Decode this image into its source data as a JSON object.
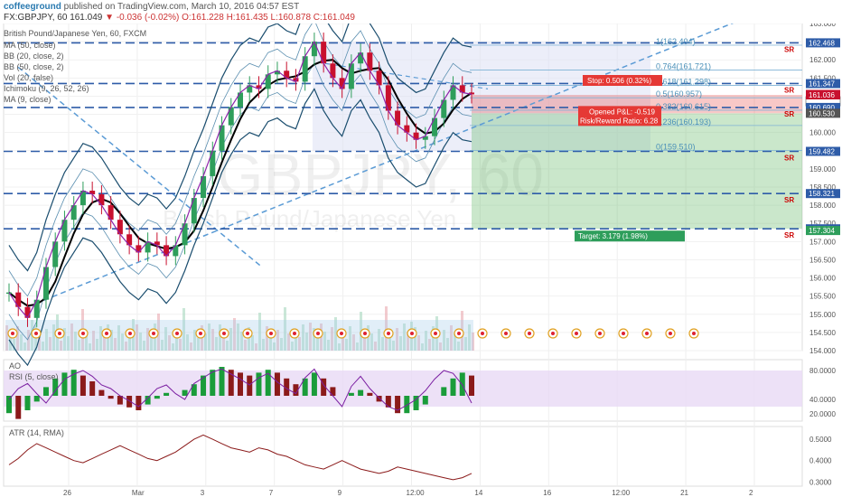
{
  "header": {
    "author": "coffeeground",
    "published": "published on TradingView.com, March 10, 2016 04:57 EST",
    "symbol": "FX:GBPJPY, 60",
    "last": "161.049",
    "change": "-0.036 (-0.02%)",
    "open": "O:161.228",
    "high": "H:161.435",
    "low": "L:160.878",
    "close": "C:161.049"
  },
  "legend": {
    "title": "British Pound/Japanese Yen, 60, FXCM",
    "items": [
      "MA (50, close)",
      "BB (20, close, 2)",
      "BB (50, close, 2)",
      "Vol (20, false)",
      "Ichimoku (9, 26, 52, 26)",
      "MA (9, close)"
    ]
  },
  "watermark": {
    "symbol": "GBPJPY, 60",
    "name": "British Pound/Japanese Yen"
  },
  "colors": {
    "up": "#2e9e5b",
    "down": "#c8102e",
    "sr_line": "#2e5ca8",
    "trend": "#5b9bd5",
    "target": "#66bb6a",
    "stop": "#e53935",
    "rsi_band": "#e8d9f5"
  },
  "chart_data": [
    {
      "type": "candlestick",
      "title": "British Pound/Japanese Yen, 60, FXCM",
      "ylim": [
        154.0,
        163.0
      ],
      "x_ticks": [
        "26",
        "Mar",
        "3",
        "7",
        "9",
        "12:00",
        "14",
        "16",
        "12:00",
        "21",
        "2"
      ],
      "y_ticks": [
        "163.000",
        "162.500",
        "162.000",
        "161.500",
        "161.000",
        "160.500",
        "160.000",
        "159.500",
        "159.000",
        "158.500",
        "158.000",
        "157.500",
        "157.000",
        "156.500",
        "156.000",
        "155.500",
        "155.000",
        "154.500",
        "154.000"
      ],
      "close_series": [
        155.6,
        155.2,
        154.9,
        155.4,
        156.3,
        157.0,
        157.6,
        158.0,
        158.4,
        158.3,
        158.0,
        157.6,
        157.2,
        156.9,
        156.7,
        157.0,
        156.9,
        156.6,
        156.9,
        157.5,
        158.2,
        158.8,
        159.5,
        160.2,
        160.7,
        161.1,
        161.3,
        161.2,
        161.6,
        161.7,
        161.5,
        161.4,
        162.1,
        162.5,
        161.9,
        161.5,
        161.2,
        161.9,
        162.2,
        161.7,
        161.3,
        160.6,
        160.2,
        160.0,
        159.8,
        159.9,
        160.4,
        160.9,
        161.3,
        161.1,
        161.05
      ],
      "sr_levels": [
        {
          "value": 162.468,
          "label": "SR"
        },
        {
          "value": 161.347,
          "label": "SR"
        },
        {
          "value": 160.69,
          "label": "SR"
        },
        {
          "value": 159.482,
          "label": "SR"
        },
        {
          "value": 158.321,
          "label": "SR"
        },
        {
          "value": 157.351,
          "label": "SR"
        }
      ],
      "price_labels": [
        {
          "value": 162.468,
          "text": "162.468"
        },
        {
          "value": 161.347,
          "text": "161.347"
        },
        {
          "value": 161.049,
          "text": "161.049"
        },
        {
          "value": 160.86,
          "text": "03:55"
        },
        {
          "value": 161.036,
          "text": "161.036"
        },
        {
          "value": 160.69,
          "text": "160.690"
        },
        {
          "value": 160.53,
          "text": "160.530"
        },
        {
          "value": 159.482,
          "text": "159.482"
        },
        {
          "value": 158.321,
          "text": "158.321"
        },
        {
          "value": 157.351,
          "text": "157.351"
        },
        {
          "value": 157.304,
          "text": "157.304"
        }
      ],
      "fib_levels": [
        {
          "value": 162.404,
          "text": "1(162.404)"
        },
        {
          "value": 161.721,
          "text": "0.764(161.721)"
        },
        {
          "value": 161.298,
          "text": "0.618(161.298)"
        },
        {
          "value": 160.957,
          "text": "0.5(160.957)"
        },
        {
          "value": 160.615,
          "text": "0.382(160.615)"
        },
        {
          "value": 160.193,
          "text": "0.236(160.193)"
        },
        {
          "value": 159.51,
          "text": "0(159.510)"
        }
      ],
      "trade": {
        "stop_label": "Stop: 0.506 (0.32%)",
        "pnl_label": "Opened P&L: -0.519",
        "rr_label": "Risk/Reward Ratio: 6.28",
        "target_label": "Target: 3.179 (1.98%)",
        "entry": 160.53,
        "stop": 161.036,
        "target": 157.351
      }
    },
    {
      "type": "line",
      "title": "RSI (5, close)",
      "label_ao": "AO",
      "ylim": [
        10,
        95
      ],
      "y_ticks": [
        "80.0000",
        "40.0000",
        "20.0000"
      ],
      "rsi": [
        40,
        55,
        62,
        48,
        35,
        52,
        68,
        75,
        80,
        72,
        60,
        55,
        45,
        38,
        30,
        42,
        55,
        60,
        48,
        40,
        62,
        70,
        78,
        82,
        75,
        68,
        60,
        70,
        76,
        64,
        55,
        48,
        70,
        82,
        60,
        45,
        30,
        58,
        72,
        55,
        42,
        30,
        25,
        32,
        40,
        52,
        68,
        80,
        76,
        60,
        35
      ],
      "ao": [
        -6,
        -8,
        -5,
        -2,
        3,
        6,
        8,
        9,
        7,
        5,
        2,
        -1,
        -3,
        -4,
        -5,
        -3,
        -1,
        1,
        0,
        2,
        4,
        7,
        9,
        10,
        9,
        8,
        7,
        8,
        9,
        8,
        6,
        4,
        6,
        8,
        6,
        3,
        0,
        1,
        2,
        1,
        -2,
        -4,
        -6,
        -6,
        -5,
        -3,
        0,
        3,
        6,
        8,
        7
      ]
    },
    {
      "type": "line",
      "title": "ATR (14, RMA)",
      "ylim": [
        0.28,
        0.56
      ],
      "y_ticks": [
        "0.5000",
        "0.4000",
        "0.3000"
      ],
      "values": [
        0.38,
        0.41,
        0.45,
        0.48,
        0.46,
        0.44,
        0.42,
        0.4,
        0.39,
        0.41,
        0.43,
        0.45,
        0.47,
        0.45,
        0.43,
        0.41,
        0.4,
        0.42,
        0.44,
        0.47,
        0.5,
        0.52,
        0.5,
        0.48,
        0.46,
        0.45,
        0.44,
        0.46,
        0.45,
        0.43,
        0.42,
        0.4,
        0.38,
        0.37,
        0.36,
        0.38,
        0.4,
        0.38,
        0.36,
        0.35,
        0.34,
        0.35,
        0.37,
        0.36,
        0.35,
        0.34,
        0.33,
        0.32,
        0.31,
        0.32,
        0.34
      ]
    }
  ]
}
